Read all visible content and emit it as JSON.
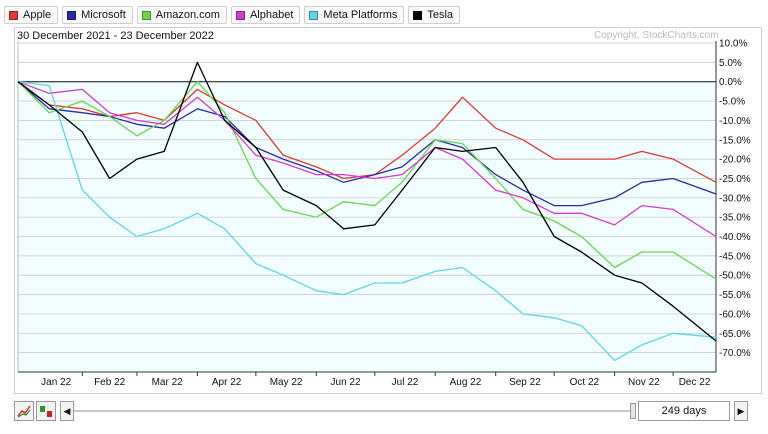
{
  "header": {
    "date_range": "30 December 2021 - 23 December 2022",
    "copyright": "Copyright, StockCharts.com"
  },
  "legend": [
    {
      "label": "Apple",
      "color": "#dd3a31"
    },
    {
      "label": "Microsoft",
      "color": "#2a2aa8"
    },
    {
      "label": "Amazon.com",
      "color": "#6ad84a"
    },
    {
      "label": "Alphabet",
      "color": "#d23bd2"
    },
    {
      "label": "Meta Platforms",
      "color": "#5fd5ec"
    },
    {
      "label": "Tesla",
      "color": "#000000"
    }
  ],
  "controls": {
    "days": "249 days",
    "scroll_left": "◀",
    "scroll_right": "▶",
    "line_chart_icon": "line-chart-icon",
    "bar_chart_icon": "bar-chart-icon"
  },
  "chart_data": {
    "type": "line",
    "ylabel": "",
    "y_unit": "%",
    "ylim": [
      -75,
      10
    ],
    "yticks": [
      10,
      5,
      0,
      -5,
      -10,
      -15,
      -20,
      -25,
      -30,
      -35,
      -40,
      -45,
      -50,
      -55,
      -60,
      -65,
      -70
    ],
    "ytick_labels": [
      "10.0%",
      "5.0%",
      "0.0%",
      "-5.0%",
      "-10.0%",
      "-15.0%",
      "-20.0%",
      "-25.0%",
      "-30.0%",
      "-35.0%",
      "-40.0%",
      "-45.0%",
      "-50.0%",
      "-55.0%",
      "-60.0%",
      "-65.0%",
      "-70.0%"
    ],
    "x_labels": [
      "Jan 22",
      "Feb 22",
      "Mar 22",
      "Apr 22",
      "May 22",
      "Jun 22",
      "Jul 22",
      "Aug 22",
      "Sep 22",
      "Oct 22",
      "Nov 22",
      "Dec 22"
    ],
    "grid": true,
    "legend_position": "top",
    "x": [
      "2021-12-30",
      "2022-01-15",
      "2022-02-01",
      "2022-02-15",
      "2022-03-01",
      "2022-03-15",
      "2022-04-01",
      "2022-04-15",
      "2022-05-01",
      "2022-05-15",
      "2022-06-01",
      "2022-06-15",
      "2022-07-01",
      "2022-07-15",
      "2022-08-01",
      "2022-08-15",
      "2022-09-01",
      "2022-09-15",
      "2022-10-01",
      "2022-10-15",
      "2022-11-01",
      "2022-11-15",
      "2022-12-01",
      "2022-12-23"
    ],
    "series": [
      {
        "name": "Apple",
        "color": "#dd3a31",
        "values": [
          0,
          -6,
          -7,
          -9,
          -8,
          -10,
          -2,
          -6,
          -10,
          -19,
          -22,
          -25,
          -24,
          -19,
          -12,
          -4,
          -12,
          -15,
          -20,
          -20,
          -20,
          -18,
          -20,
          -26
        ]
      },
      {
        "name": "Microsoft",
        "color": "#2a2aa8",
        "values": [
          0,
          -7,
          -8,
          -9,
          -11,
          -12,
          -7,
          -9,
          -17,
          -20,
          -23,
          -26,
          -24,
          -22,
          -15,
          -17,
          -24,
          -28,
          -32,
          -32,
          -30,
          -26,
          -25,
          -29
        ]
      },
      {
        "name": "Amazon.com",
        "color": "#6ad84a",
        "values": [
          0,
          -8,
          -5,
          -9,
          -14,
          -10,
          0,
          -8,
          -25,
          -33,
          -35,
          -31,
          -32,
          -26,
          -15,
          -16,
          -25,
          -33,
          -36,
          -40,
          -48,
          -44,
          -44,
          -51
        ]
      },
      {
        "name": "Alphabet",
        "color": "#d23bd2",
        "values": [
          0,
          -3,
          -2,
          -8,
          -10,
          -11,
          -4,
          -10,
          -19,
          -21,
          -24,
          -24,
          -25,
          -24,
          -17,
          -20,
          -28,
          -30,
          -34,
          -34,
          -37,
          -32,
          -33,
          -40
        ]
      },
      {
        "name": "Meta Platforms",
        "color": "#5fd5ec",
        "values": [
          0,
          -1,
          -28,
          -35,
          -40,
          -38,
          -34,
          -38,
          -47,
          -50,
          -54,
          -55,
          -52,
          -52,
          -49,
          -48,
          -54,
          -60,
          -61,
          -63,
          -72,
          -68,
          -65,
          -66
        ]
      },
      {
        "name": "Tesla",
        "color": "#000000",
        "values": [
          0,
          -6,
          -13,
          -25,
          -20,
          -18,
          5,
          -10,
          -17,
          -28,
          -32,
          -38,
          -37,
          -28,
          -17,
          -18,
          -17,
          -26,
          -40,
          -44,
          -50,
          -52,
          -58,
          -67
        ]
      }
    ]
  }
}
